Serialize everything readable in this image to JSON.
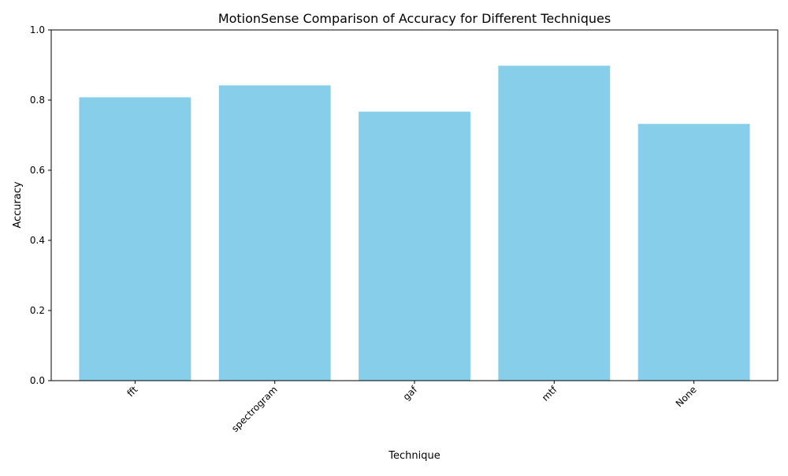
{
  "chart_data": {
    "type": "bar",
    "title": "MotionSense Comparison of Accuracy for Different Techniques",
    "xlabel": "Technique",
    "ylabel": "Accuracy",
    "categories": [
      "fft",
      "spectrogram",
      "gaf",
      "mtf",
      "None"
    ],
    "values": [
      0.808,
      0.842,
      0.767,
      0.898,
      0.732
    ],
    "ylim": [
      0,
      1.0
    ],
    "yticks": [
      0.0,
      0.2,
      0.4,
      0.6,
      0.8,
      1.0
    ],
    "ytick_labels": [
      "0.0",
      "0.2",
      "0.4",
      "0.6",
      "0.8",
      "1.0"
    ],
    "bar_color": "#87CEEB",
    "grid": false,
    "legend": "none"
  }
}
